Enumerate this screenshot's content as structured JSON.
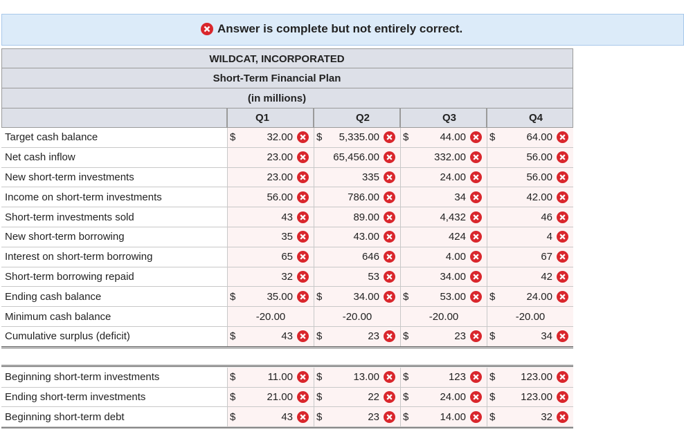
{
  "banner": {
    "message": "Answer is complete but not entirely correct."
  },
  "header": {
    "company": "WILDCAT, INCORPORATED",
    "title": "Short-Term Financial Plan",
    "units": "(in millions)",
    "quarters": [
      "Q1",
      "Q2",
      "Q3",
      "Q4"
    ]
  },
  "sections": [
    {
      "rows": [
        {
          "label": "Target cash balance",
          "cells": [
            {
              "dollar": "$",
              "value": "32.00",
              "wrong": true
            },
            {
              "dollar": "$",
              "value": "5,335.00",
              "wrong": true
            },
            {
              "dollar": "$",
              "value": "44.00",
              "wrong": true
            },
            {
              "dollar": "$",
              "value": "64.00",
              "wrong": true
            }
          ]
        },
        {
          "label": "Net cash inflow",
          "cells": [
            {
              "value": "23.00",
              "wrong": true
            },
            {
              "value": "65,456.00",
              "wrong": true
            },
            {
              "value": "332.00",
              "wrong": true
            },
            {
              "value": "56.00",
              "wrong": true
            }
          ]
        },
        {
          "label": "New short-term investments",
          "cells": [
            {
              "value": "23.00",
              "wrong": true
            },
            {
              "value": "335",
              "wrong": true
            },
            {
              "value": "24.00",
              "wrong": true
            },
            {
              "value": "56.00",
              "wrong": true
            }
          ]
        },
        {
          "label": "Income on short-term investments",
          "cells": [
            {
              "value": "56.00",
              "wrong": true
            },
            {
              "value": "786.00",
              "wrong": true
            },
            {
              "value": "34",
              "wrong": true
            },
            {
              "value": "42.00",
              "wrong": true
            }
          ]
        },
        {
          "label": "Short-term investments sold",
          "cells": [
            {
              "value": "43",
              "wrong": true
            },
            {
              "value": "89.00",
              "wrong": true
            },
            {
              "value": "4,432",
              "wrong": true
            },
            {
              "value": "46",
              "wrong": true
            }
          ]
        },
        {
          "label": "New short-term borrowing",
          "cells": [
            {
              "value": "35",
              "wrong": true
            },
            {
              "value": "43.00",
              "wrong": true
            },
            {
              "value": "424",
              "wrong": true
            },
            {
              "value": "4",
              "wrong": true
            }
          ]
        },
        {
          "label": "Interest on short-term borrowing",
          "cells": [
            {
              "value": "65",
              "wrong": true
            },
            {
              "value": "646",
              "wrong": true
            },
            {
              "value": "4.00",
              "wrong": true
            },
            {
              "value": "67",
              "wrong": true
            }
          ]
        },
        {
          "label": "Short-term borrowing repaid",
          "cells": [
            {
              "value": "32",
              "wrong": true
            },
            {
              "value": "53",
              "wrong": true
            },
            {
              "value": "34.00",
              "wrong": true
            },
            {
              "value": "42",
              "wrong": true
            }
          ]
        },
        {
          "label": "Ending cash balance",
          "cells": [
            {
              "dollar": "$",
              "value": "35.00",
              "wrong": true
            },
            {
              "dollar": "$",
              "value": "34.00",
              "wrong": true
            },
            {
              "dollar": "$",
              "value": "53.00",
              "wrong": true
            },
            {
              "dollar": "$",
              "value": "24.00",
              "wrong": true
            }
          ]
        },
        {
          "label": "Minimum cash balance",
          "cells": [
            {
              "value": "-20.00",
              "wrong": false
            },
            {
              "value": "-20.00",
              "wrong": false
            },
            {
              "value": "-20.00",
              "wrong": false
            },
            {
              "value": "-20.00",
              "wrong": false
            }
          ]
        },
        {
          "label": "Cumulative surplus (deficit)",
          "cells": [
            {
              "dollar": "$",
              "value": "43",
              "wrong": true
            },
            {
              "dollar": "$",
              "value": "23",
              "wrong": true
            },
            {
              "dollar": "$",
              "value": "23",
              "wrong": true
            },
            {
              "dollar": "$",
              "value": "34",
              "wrong": true
            }
          ]
        }
      ]
    },
    {
      "rows": [
        {
          "label": "Beginning short-term investments",
          "cells": [
            {
              "dollar": "$",
              "value": "11.00",
              "wrong": true
            },
            {
              "dollar": "$",
              "value": "13.00",
              "wrong": true
            },
            {
              "dollar": "$",
              "value": "123",
              "wrong": true
            },
            {
              "dollar": "$",
              "value": "123.00",
              "wrong": true
            }
          ]
        },
        {
          "label": "Ending short-term investments",
          "cells": [
            {
              "dollar": "$",
              "value": "21.00",
              "wrong": true
            },
            {
              "dollar": "$",
              "value": "22",
              "wrong": true
            },
            {
              "dollar": "$",
              "value": "24.00",
              "wrong": true
            },
            {
              "dollar": "$",
              "value": "123.00",
              "wrong": true
            }
          ]
        },
        {
          "label": "Beginning short-term debt",
          "cells": [
            {
              "dollar": "$",
              "value": "43",
              "wrong": true
            },
            {
              "dollar": "$",
              "value": "23",
              "wrong": true
            },
            {
              "dollar": "$",
              "value": "14.00",
              "wrong": true
            },
            {
              "dollar": "$",
              "value": "32",
              "wrong": true
            }
          ]
        }
      ]
    }
  ]
}
